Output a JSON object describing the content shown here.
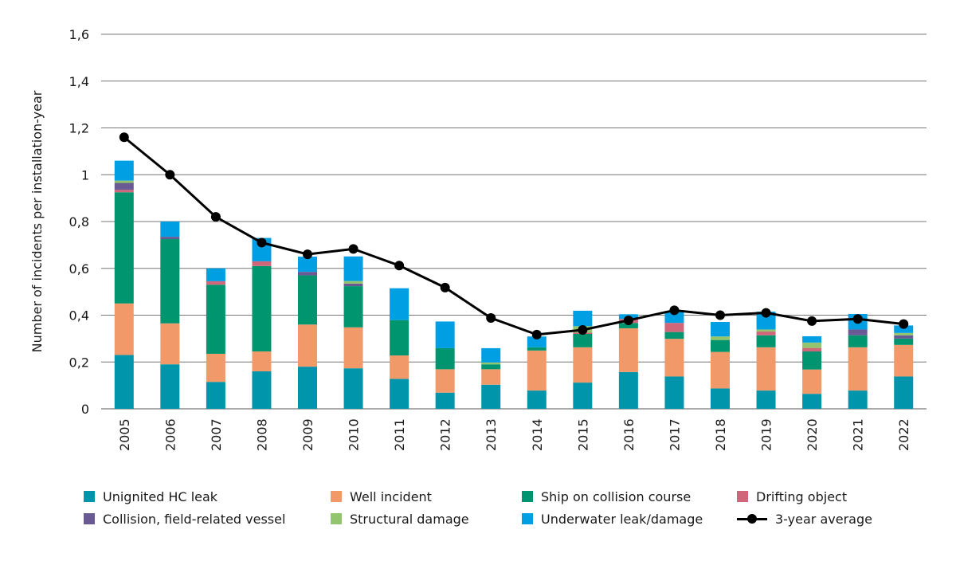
{
  "chart_data": {
    "type": "bar",
    "stacked": true,
    "ylabel": "Number of incidents per installation-year",
    "ylim": [
      0,
      1.6
    ],
    "yticks": [
      "0",
      "0,2",
      "0,4",
      "0,6",
      "0,8",
      "1",
      "1,2",
      "1,4",
      "1,6"
    ],
    "grid": true,
    "legend_position": "bottom",
    "categories": [
      "2005",
      "2006",
      "2007",
      "2008",
      "2009",
      "2010",
      "2011",
      "2012",
      "2013",
      "2014",
      "2015",
      "2016",
      "2017",
      "2018",
      "2019",
      "2020",
      "2021",
      "2022"
    ],
    "series": [
      {
        "name": "Unignited HC leak",
        "color": "#0095aa",
        "values": [
          0.23,
          0.19,
          0.115,
          0.16,
          0.18,
          0.173,
          0.128,
          0.069,
          0.103,
          0.078,
          0.112,
          0.157,
          0.138,
          0.087,
          0.078,
          0.064,
          0.078,
          0.138
        ]
      },
      {
        "name": "Well incident",
        "color": "#f2996a",
        "values": [
          0.22,
          0.175,
          0.12,
          0.085,
          0.18,
          0.175,
          0.1,
          0.1,
          0.066,
          0.171,
          0.151,
          0.187,
          0.161,
          0.156,
          0.185,
          0.104,
          0.185,
          0.135
        ]
      },
      {
        "name": "Ship on collision course",
        "color": "#00956e",
        "values": [
          0.475,
          0.36,
          0.295,
          0.365,
          0.21,
          0.176,
          0.151,
          0.09,
          0.021,
          0.014,
          0.057,
          0.023,
          0.029,
          0.051,
          0.051,
          0.077,
          0.051,
          0.027
        ]
      },
      {
        "name": "Drifting object",
        "color": "#d0667a",
        "values": [
          0.01,
          0,
          0.015,
          0.02,
          0,
          0,
          0,
          0,
          0,
          0,
          0.005,
          0.017,
          0.039,
          0,
          0.016,
          0.015,
          0,
          0
        ]
      },
      {
        "name": "Collision, field-related vessel",
        "color": "#6a5a94",
        "values": [
          0.03,
          0.01,
          0,
          0,
          0.015,
          0.011,
          0,
          0,
          0,
          0,
          0,
          0,
          0,
          0,
          0,
          0,
          0.025,
          0.014
        ]
      },
      {
        "name": "Structural damage",
        "color": "#92c56e",
        "values": [
          0.01,
          0,
          0,
          0,
          0,
          0.011,
          0,
          0,
          0.008,
          0,
          0.028,
          0,
          0,
          0.015,
          0.009,
          0.023,
          0,
          0.01
        ]
      },
      {
        "name": "Underwater leak/damage",
        "color": "#009fe3",
        "values": [
          0.085,
          0.065,
          0.055,
          0.1,
          0.065,
          0.105,
          0.136,
          0.114,
          0.061,
          0.046,
          0.066,
          0.02,
          0.051,
          0.062,
          0.076,
          0.027,
          0.066,
          0.032
        ]
      }
    ],
    "line": {
      "name": "3-year average",
      "color": "#000000",
      "values": [
        1.16,
        1.0,
        0.82,
        0.71,
        0.66,
        0.683,
        0.612,
        0.518,
        0.388,
        0.317,
        0.337,
        0.378,
        0.421,
        0.4,
        0.41,
        0.375,
        0.384,
        0.362
      ]
    }
  }
}
